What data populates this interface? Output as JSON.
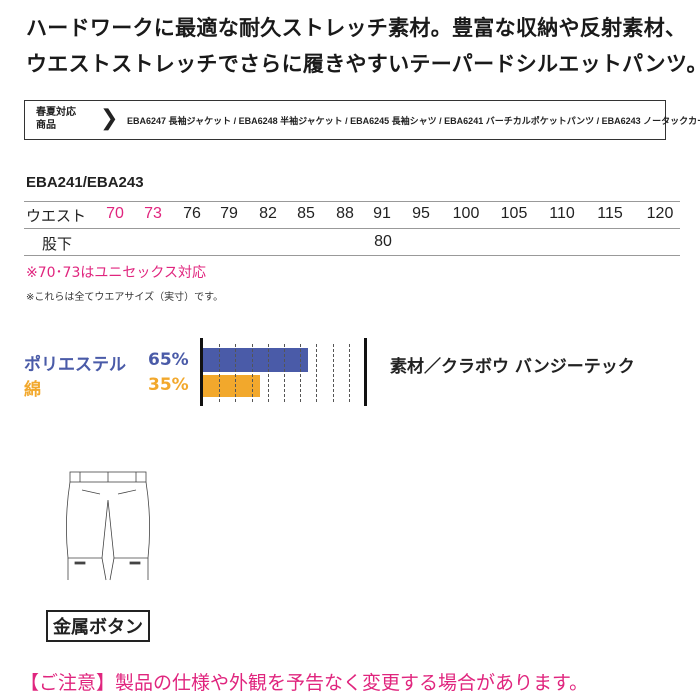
{
  "headline": [
    "ハードワークに最適な耐久ストレッチ素材。豊富な収納や反射素材、",
    "ウエストストレッチでさらに履きやすいテーパードシルエットパンツ。"
  ],
  "series_box": {
    "label_line1": "春夏対応",
    "label_line2": "商品",
    "chevron_icon": "chevron-right-icon",
    "items": "EBA6247 長袖ジャケット / EBA6248 半袖ジャケット / EBA6245 長袖シャツ / EBA6241 バーチカルポケットパンツ / EBA6243 ノータックカーゴパンツ"
  },
  "size_table": {
    "model": "EBA241/EBA243",
    "waist_label": "ウエスト",
    "waist": [
      "70",
      "73",
      "76",
      "79",
      "82",
      "85",
      "88",
      "91",
      "95",
      "100",
      "105",
      "110",
      "115",
      "120"
    ],
    "unisex_sizes": [
      "70",
      "73"
    ],
    "inseam_label": "股下",
    "inseam": "80"
  },
  "notes": {
    "unisex": "※70･73はユニセックス対応",
    "actual": "※これらは全てウエアサイズ（実寸）です。"
  },
  "composition": {
    "items": [
      {
        "name": "ポリエステル",
        "percent_label": "65%",
        "percent": 65,
        "color": "#4a5ba8"
      },
      {
        "name": "綿",
        "percent_label": "35%",
        "percent": 35,
        "color": "#f2a82c"
      }
    ],
    "material": "素材／クラボウ バンジーテック"
  },
  "feature_label": "金属ボタン",
  "warning": "【ご注意】製品の仕様や外観を予告なく変更する場合があります。"
}
